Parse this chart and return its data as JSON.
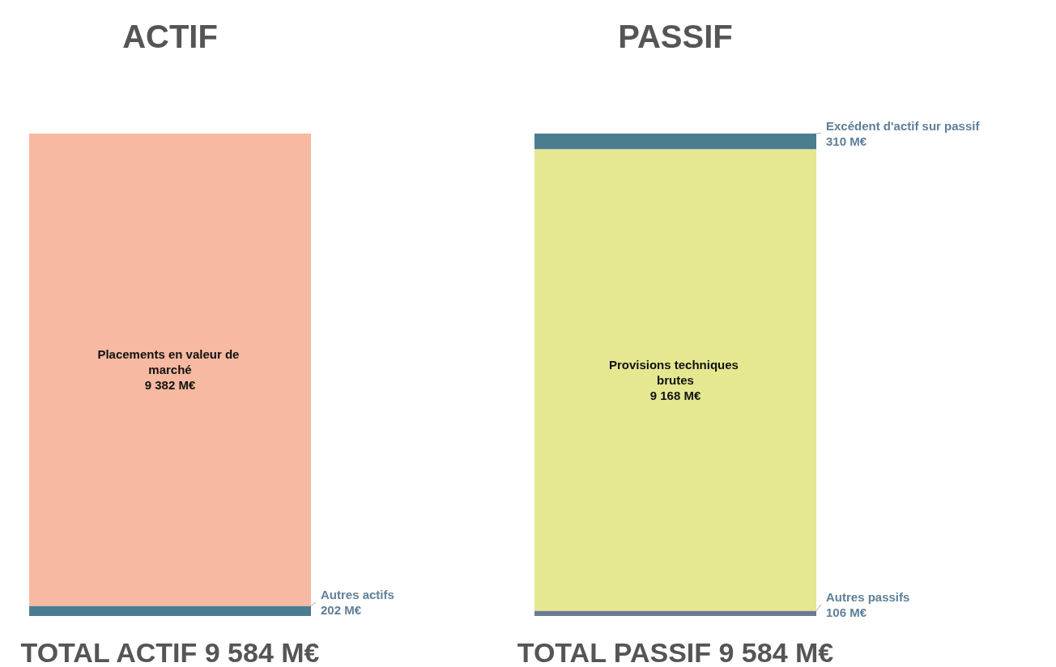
{
  "chart_data": {
    "type": "bar",
    "stacked": true,
    "categories": [
      "ACTIF",
      "PASSIF"
    ],
    "legend": false,
    "totals": [
      "TOTAL ACTIF 9 584 M€",
      "TOTAL PASSIF 9 584 M€"
    ],
    "series": [
      {
        "name": "Autres actifs",
        "color": "#4a7d8f",
        "values": [
          202,
          null
        ],
        "value_labels": [
          "202 M€",
          null
        ]
      },
      {
        "name": "Placements en valeur de marché",
        "color": "#f7b9a1",
        "values": [
          9382,
          null
        ],
        "value_labels": [
          "9 382 M€",
          null
        ]
      },
      {
        "name": "Autres passifs",
        "color": "#6b7a8f",
        "values": [
          null,
          106
        ],
        "value_labels": [
          null,
          "106 M€"
        ]
      },
      {
        "name": "Provisions techniques brutes",
        "color": "#e5e791",
        "values": [
          null,
          9168
        ],
        "value_labels": [
          null,
          "9 168 M€"
        ]
      },
      {
        "name": "Excédent d'actif sur passif",
        "color": "#4a7d8f",
        "values": [
          null,
          310
        ],
        "value_labels": [
          null,
          "310 M€"
        ]
      }
    ]
  }
}
